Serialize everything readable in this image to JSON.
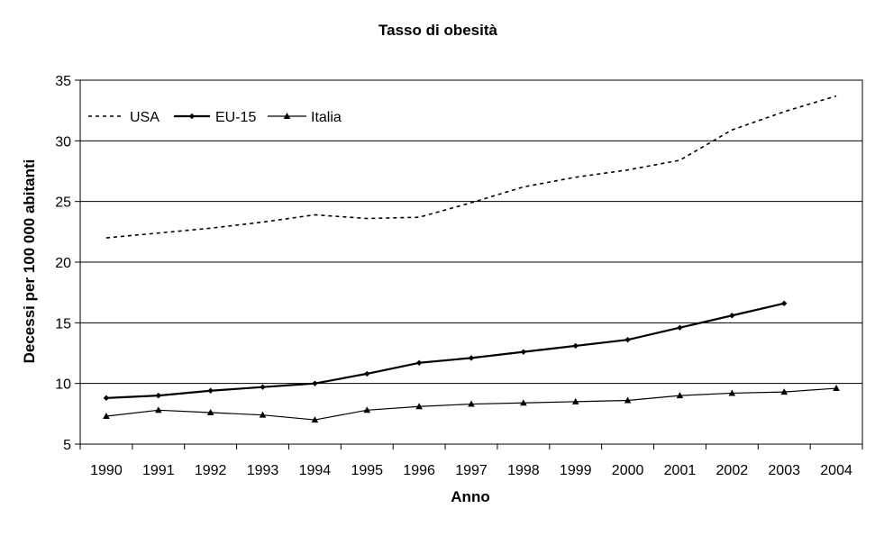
{
  "chart_data": {
    "type": "line",
    "title": "Tasso di obesità",
    "xlabel": "Anno",
    "ylabel": "Decessi per 100 000 abitanti",
    "ylim": [
      5,
      35
    ],
    "yticks": [
      "5",
      "10",
      "15",
      "20",
      "25",
      "30",
      "35"
    ],
    "categories": [
      "1990",
      "1991",
      "1992",
      "1993",
      "1994",
      "1995",
      "1996",
      "1997",
      "1998",
      "1999",
      "2000",
      "2001",
      "2002",
      "2003",
      "2004"
    ],
    "grid": "horizontal",
    "legend_position": "top-left",
    "series": [
      {
        "name": "USA",
        "style": "dotted",
        "marker": "none",
        "values": [
          22.0,
          22.4,
          22.8,
          23.3,
          23.9,
          23.6,
          23.7,
          24.9,
          26.2,
          27.0,
          27.6,
          28.4,
          30.9,
          32.4,
          33.7
        ]
      },
      {
        "name": "EU-15",
        "style": "solid-thick",
        "marker": "diamond",
        "values": [
          8.8,
          9.0,
          9.4,
          9.7,
          10.0,
          10.8,
          11.7,
          12.1,
          12.6,
          13.1,
          13.6,
          14.6,
          15.6,
          16.6,
          null
        ]
      },
      {
        "name": "Italia",
        "style": "solid-thin",
        "marker": "triangle",
        "values": [
          7.3,
          7.8,
          7.6,
          7.4,
          7.0,
          7.8,
          8.1,
          8.3,
          8.4,
          8.5,
          8.6,
          9.0,
          9.2,
          9.3,
          9.6
        ]
      }
    ]
  }
}
